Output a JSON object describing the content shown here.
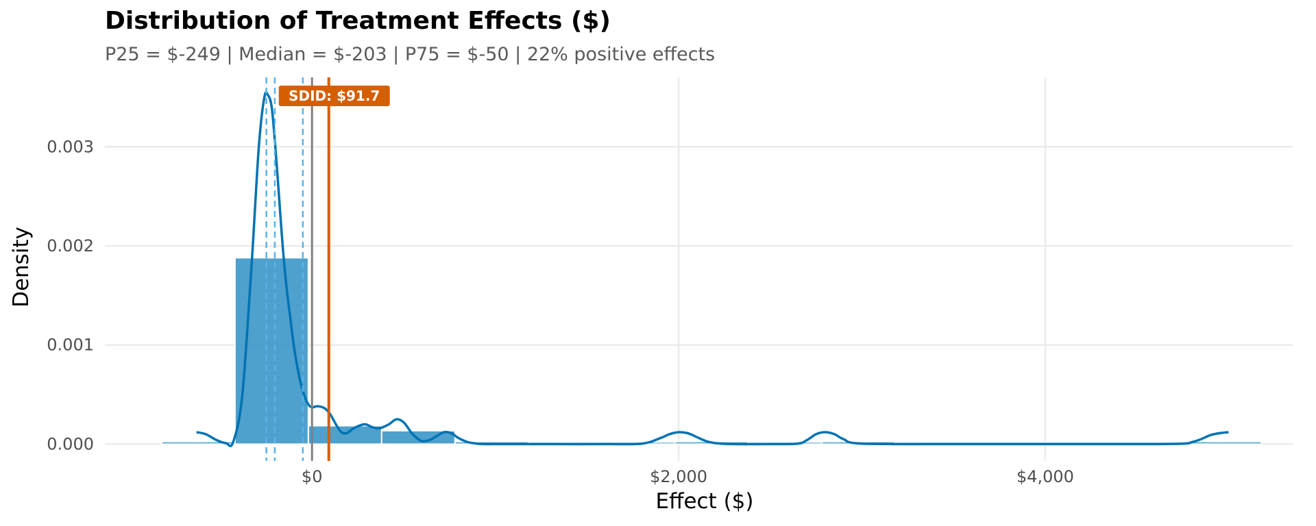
{
  "chart_data": {
    "type": "histogram",
    "title": "Distribution of Treatment Effects ($)",
    "subtitle": "P25 = $-249 | Median = $-203 | P75 = $-50 | 22% positive effects",
    "xlabel": "Effect ($)",
    "ylabel": "Density",
    "xlim": [
      -1130,
      5350
    ],
    "ylim": [
      -0.00017,
      0.0037
    ],
    "x_ticks": [
      {
        "value": 0,
        "label": "$0"
      },
      {
        "value": 2000,
        "label": "$2,000"
      },
      {
        "value": 4000,
        "label": "$4,000"
      }
    ],
    "y_ticks": [
      {
        "value": 0.0,
        "label": "0.000"
      },
      {
        "value": 0.001,
        "label": "0.001"
      },
      {
        "value": 0.002,
        "label": "0.002"
      },
      {
        "value": 0.003,
        "label": "0.003"
      }
    ],
    "grid": true,
    "bins": [
      {
        "x0": -820,
        "x1": -420,
        "density": 2.5e-05
      },
      {
        "x0": -420,
        "x1": -20,
        "density": 0.00188
      },
      {
        "x0": -20,
        "x1": 380,
        "density": 0.000185
      },
      {
        "x0": 380,
        "x1": 780,
        "density": 0.000135
      },
      {
        "x0": 780,
        "x1": 1180,
        "density": 2.5e-05
      },
      {
        "x0": 1180,
        "x1": 1980,
        "density": 0.0
      },
      {
        "x0": 1980,
        "x1": 2380,
        "density": 2.5e-05
      },
      {
        "x0": 2380,
        "x1": 2780,
        "density": 0.0
      },
      {
        "x0": 2780,
        "x1": 3180,
        "density": 2.5e-05
      },
      {
        "x0": 3180,
        "x1": 4780,
        "density": 0.0
      },
      {
        "x0": 4780,
        "x1": 5180,
        "density": 2.5e-05
      }
    ],
    "density_curve": {
      "x": [
        -630,
        -580,
        -520,
        -470,
        -430,
        -380,
        -330,
        -290,
        -260,
        -240,
        -220,
        -200,
        -180,
        -160,
        -140,
        -120,
        -100,
        -80,
        -60,
        -40,
        -20,
        0,
        20,
        40,
        70,
        100,
        130,
        160,
        190,
        220,
        250,
        290,
        330,
        370,
        420,
        460,
        500,
        540,
        560,
        580,
        600,
        640,
        680,
        720,
        760,
        800,
        850,
        900,
        950,
        1000,
        1100,
        1300,
        1600,
        1800,
        1900,
        1950,
        2000,
        2050,
        2100,
        2150,
        2200,
        2300,
        2500,
        2650,
        2700,
        2750,
        2800,
        2850,
        2900,
        3000,
        3500,
        4000,
        4500,
        4750,
        4800,
        4850,
        4900,
        4950,
        5000
      ],
      "y": [
        0.00012,
        0.0001,
        4e-05,
        1e-05,
        2e-05,
        0.0005,
        0.0018,
        0.003,
        0.0035,
        0.00352,
        0.0034,
        0.003,
        0.0025,
        0.002,
        0.0016,
        0.0013,
        0.001,
        0.00078,
        0.0006,
        0.00048,
        0.0004,
        0.00037,
        0.00038,
        0.00038,
        0.00036,
        0.0003,
        0.0002,
        0.00012,
        0.00011,
        0.00015,
        0.00018,
        0.0002,
        0.00017,
        0.00016,
        0.0002,
        0.00025,
        0.00022,
        0.00012,
        8e-05,
        5e-05,
        3e-05,
        4e-05,
        8e-05,
        0.00012,
        0.00011,
        6e-05,
        2e-05,
        5e-06,
        0.0,
        0.0,
        0.0,
        0.0,
        0.0,
        5e-06,
        6e-05,
        0.0001,
        0.00012,
        0.00011,
        7e-05,
        3e-05,
        1e-05,
        0.0,
        0.0,
        5e-06,
        4e-05,
        0.0001,
        0.00012,
        0.0001,
        5e-05,
        5e-06,
        0.0,
        0.0,
        0.0,
        5e-06,
        2e-05,
        5e-05,
        9e-05,
        0.00011,
        0.00012
      ]
    },
    "reference_lines": [
      {
        "name": "p25",
        "x": -249,
        "color": "#56b4e9",
        "style": "dashed"
      },
      {
        "name": "median",
        "x": -203,
        "color": "#56b4e9",
        "style": "dashed"
      },
      {
        "name": "p75",
        "x": -50,
        "color": "#56b4e9",
        "style": "dashed"
      },
      {
        "name": "zero",
        "x": 0,
        "color": "#808080",
        "style": "solid"
      },
      {
        "name": "sdid",
        "x": 91.7,
        "color": "#d55e00",
        "style": "solid"
      }
    ],
    "annotation": {
      "text": "SDID: $91.7",
      "x": 91.7,
      "y": 0.00352,
      "color": "#d55e00"
    },
    "colors": {
      "bar_fill": "#3b96c8",
      "bar_stroke": "#ffffff",
      "density_line": "#0072b2",
      "grid": "#ebebeb"
    }
  }
}
